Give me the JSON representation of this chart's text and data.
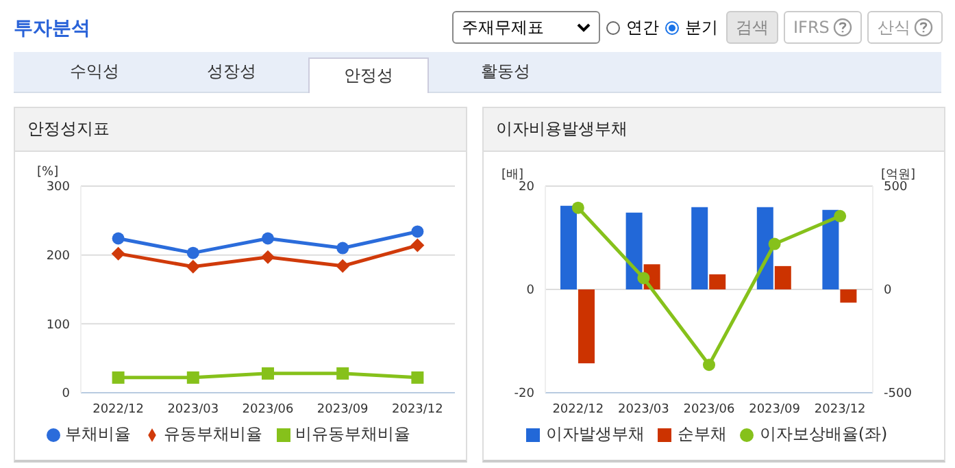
{
  "chart_data": [
    {
      "type": "other",
      "title": "투자분석",
      "annotations": [
        "주재무제표",
        "연간",
        "분기",
        "검색",
        "IFRS",
        "산식",
        "수익성",
        "성장성",
        "안정성",
        "활동성"
      ]
    },
    {
      "type": "line",
      "title": "안정성지표",
      "ylabel": "[%]",
      "categories": [
        "2022/12",
        "2023/03",
        "2023/06",
        "2023/09",
        "2023/12"
      ],
      "series": [
        {
          "name": "부채비율",
          "color": "#2b6cdb",
          "marker": "circle",
          "values": [
            224,
            203,
            224,
            210,
            234
          ]
        },
        {
          "name": "유동부채비율",
          "color": "#d03a0a",
          "marker": "diamond",
          "values": [
            202,
            183,
            197,
            184,
            214
          ]
        },
        {
          "name": "비유동부채비율",
          "color": "#86c11b",
          "marker": "square",
          "values": [
            22,
            22,
            28,
            28,
            22
          ]
        }
      ],
      "ylim": [
        0,
        300
      ],
      "yticks": [
        0,
        100,
        200,
        300
      ],
      "grid": "y",
      "legend": "bottom"
    },
    {
      "type": "bar",
      "title": "이자비용발생부채",
      "ylabel": "[배]",
      "y2label": "[억원]",
      "categories": [
        "2022/12",
        "2023/03",
        "2023/06",
        "2023/09",
        "2023/12"
      ],
      "series": [
        {
          "name": "이자발생부채",
          "color": "#2268d8",
          "axis": "y2",
          "values": [
            405,
            372,
            398,
            398,
            385
          ]
        },
        {
          "name": "순부채",
          "color": "#cc3300",
          "axis": "y2",
          "values": [
            -358,
            122,
            73,
            113,
            -64
          ]
        },
        {
          "name": "이자보상배율(좌)",
          "type": "line",
          "color": "#86c11b",
          "marker": "circle",
          "values": [
            15.8,
            2.2,
            -14.6,
            8.8,
            14.2
          ]
        }
      ],
      "ylim": [
        -20,
        20
      ],
      "yticks": [
        -20,
        0,
        20
      ],
      "y2lim": [
        -500,
        500
      ],
      "y2ticks": [
        -500,
        0,
        500
      ],
      "grid": "y",
      "legend": "bottom"
    }
  ]
}
